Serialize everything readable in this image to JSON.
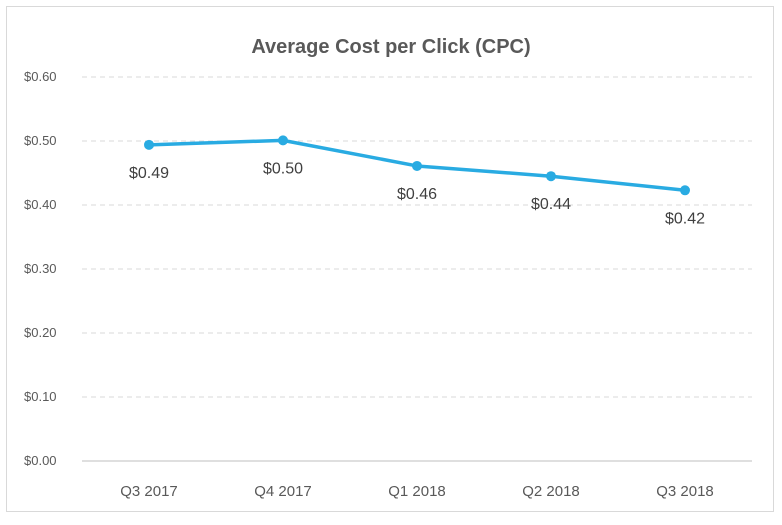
{
  "chart_data": {
    "type": "line",
    "title": "Average Cost per Click (CPC)",
    "xlabel": "",
    "ylabel": "",
    "categories": [
      "Q3 2017",
      "Q4 2017",
      "Q1 2018",
      "Q2 2018",
      "Q3 2018"
    ],
    "series": [
      {
        "values": [
          0.494,
          0.501,
          0.461,
          0.445,
          0.423
        ],
        "data_labels": [
          "$0.49",
          "$0.50",
          "$0.46",
          "$0.44",
          "$0.42"
        ],
        "color": "#29abe2"
      }
    ],
    "ylim": [
      0,
      0.6
    ],
    "yticks": [
      0,
      0.1,
      0.2,
      0.3,
      0.4,
      0.5,
      0.6
    ],
    "ytick_labels": [
      "$0.00",
      "$0.10",
      "$0.20",
      "$0.30",
      "$0.40",
      "$0.50",
      "$0.60"
    ],
    "grid": "horizontal dashed",
    "legend": "none"
  }
}
